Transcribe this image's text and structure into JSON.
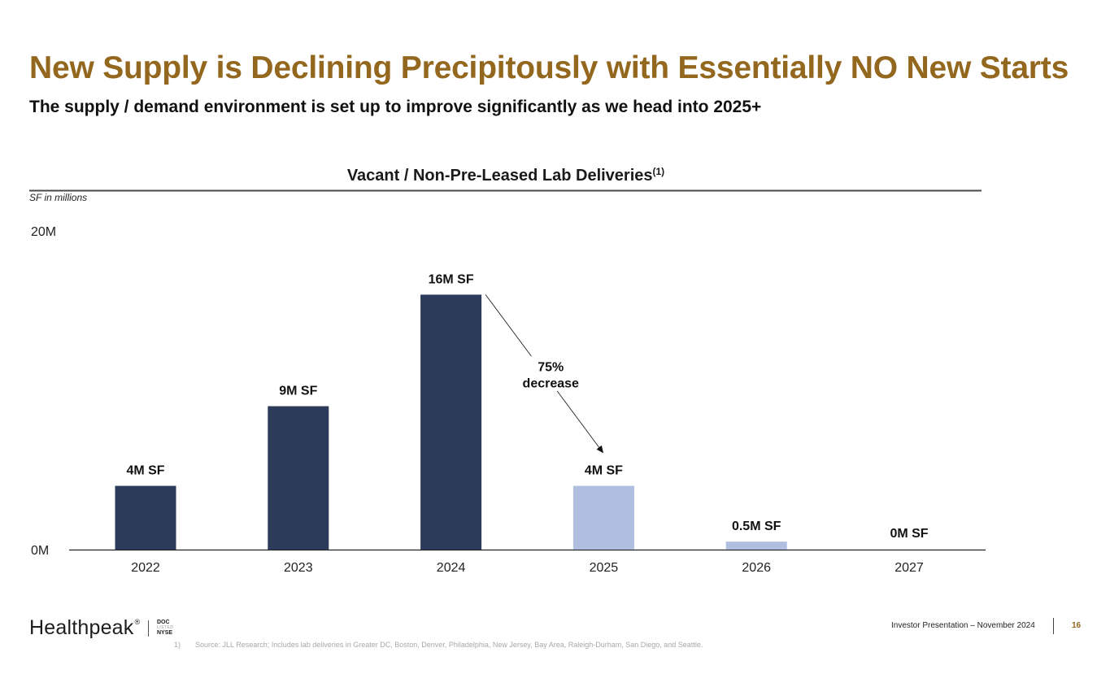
{
  "slide": {
    "title": "New Supply is Declining Precipitously with Essentially NO New Starts",
    "subtitle": "The supply / demand environment is set up to improve significantly as we head into 2025+",
    "colors": {
      "title": "#94671f",
      "historical_bar": "#2c3b5a",
      "projected_bar": "#b0bfdf",
      "page_number": "#94671f"
    }
  },
  "chart_data": {
    "type": "bar",
    "title": "Vacant / Non-Pre-Leased Lab Deliveries",
    "title_superscript": "(1)",
    "unit_note": "SF in millions",
    "xlabel": "",
    "ylabel": "",
    "ylim": [
      0,
      20
    ],
    "y_ticks": [
      {
        "value": 0,
        "label": "0M"
      },
      {
        "value": 20,
        "label": "20M"
      }
    ],
    "grid": false,
    "categories": [
      "2022",
      "2023",
      "2024",
      "2025",
      "2026",
      "2027"
    ],
    "values": [
      4,
      9,
      16,
      4,
      0.5,
      0
    ],
    "data_labels": [
      "4M SF",
      "9M SF",
      "16M SF",
      "4M SF",
      "0.5M SF",
      "0M SF"
    ],
    "bar_kind": [
      "historical",
      "historical",
      "historical",
      "projected",
      "projected",
      "projected"
    ],
    "annotation": {
      "line1": "75%",
      "line2": "decrease",
      "from_category": "2024",
      "to_category": "2025"
    }
  },
  "footer": {
    "brand": "Healthpeak",
    "brand_mark": "®",
    "ticker_top": "DOC",
    "ticker_mid": "LISTED",
    "ticker_bottom": "NYSE",
    "footnote_number": "1)",
    "footnote_text": "Source: JLL Research; Includes lab deliveries in Greater DC, Boston, Denver, Philadelphia, New Jersey, Bay Area, Raleigh-Durham, San Diego, and Seattle.",
    "presentation": "Investor Presentation – November 2024",
    "page_number": "16"
  }
}
